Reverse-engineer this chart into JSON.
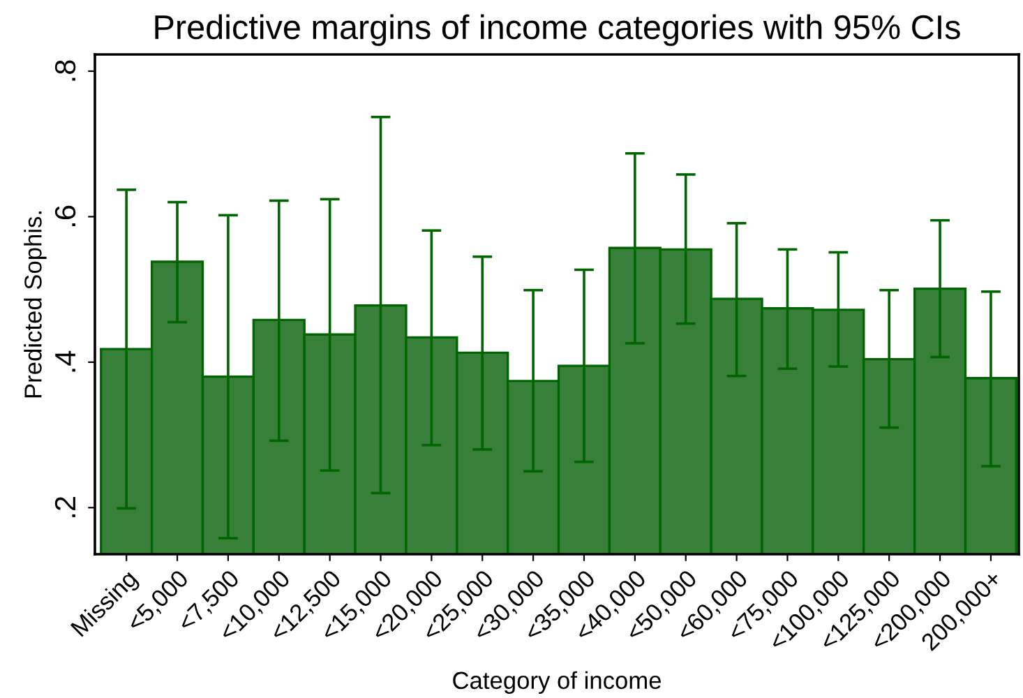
{
  "chart_data": {
    "type": "bar",
    "title": "Predictive margins of income categories with 95% CIs",
    "xlabel": "Category of income",
    "ylabel": "Predicted Sophis.",
    "categories": [
      "Missing",
      "<5,000",
      "<7,500",
      "<10,000",
      "<12,500",
      "<15,000",
      "<20,000",
      "<25,000",
      "<30,000",
      "<35,000",
      "<40,000",
      "<50,000",
      "<60,000",
      "<75,000",
      "<100,000",
      "<125,000",
      "<200,000",
      "200,000+"
    ],
    "series": [
      {
        "color": "#38803a",
        "values": [
          0.418,
          0.538,
          0.38,
          0.458,
          0.438,
          0.478,
          0.434,
          0.413,
          0.374,
          0.395,
          0.557,
          0.555,
          0.487,
          0.474,
          0.472,
          0.404,
          0.501,
          0.378
        ],
        "errors": [
          [
            0.199,
            0.637
          ],
          [
            0.455,
            0.62
          ],
          [
            0.158,
            0.602
          ],
          [
            0.292,
            0.622
          ],
          [
            0.251,
            0.624
          ],
          [
            0.22,
            0.737
          ],
          [
            0.286,
            0.581
          ],
          [
            0.28,
            0.545
          ],
          [
            0.25,
            0.499
          ],
          [
            0.263,
            0.527
          ],
          [
            0.426,
            0.687
          ],
          [
            0.453,
            0.658
          ],
          [
            0.381,
            0.591
          ],
          [
            0.391,
            0.555
          ],
          [
            0.394,
            0.551
          ],
          [
            0.31,
            0.499
          ],
          [
            0.407,
            0.595
          ],
          [
            0.257,
            0.497
          ]
        ]
      }
    ],
    "ylim": [
      0.136,
      0.823
    ],
    "yticks": [
      {
        "value": 0.2,
        "label": ".2"
      },
      {
        "value": 0.4,
        "label": ".4"
      },
      {
        "value": 0.6,
        "label": ".6"
      },
      {
        "value": 0.8,
        "label": ".8"
      }
    ],
    "grid": false,
    "legend": false
  }
}
